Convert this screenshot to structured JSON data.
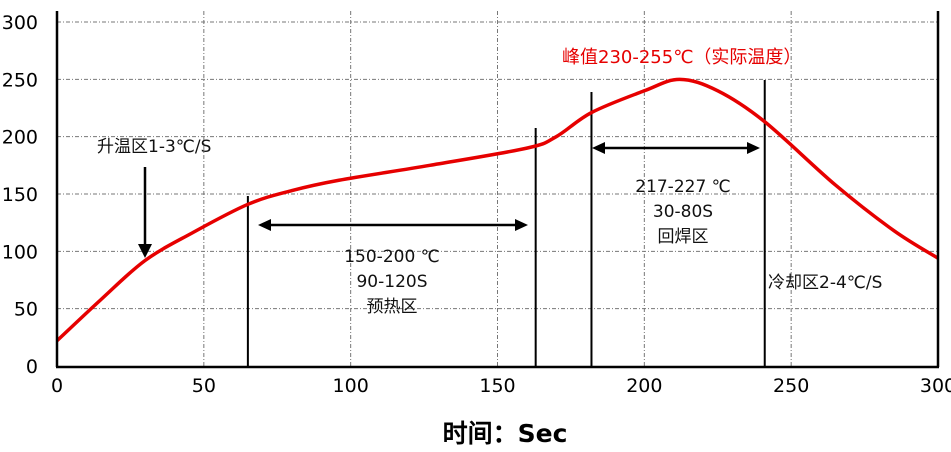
{
  "chart_data": {
    "type": "line",
    "title": "",
    "xlabel": "时间：Sec",
    "ylabel": "",
    "xlim": [
      0,
      300
    ],
    "ylim": [
      0,
      300
    ],
    "xticks": [
      0,
      50,
      100,
      150,
      200,
      250,
      300
    ],
    "yticks": [
      0,
      50,
      100,
      150,
      200,
      250,
      300
    ],
    "grid": true,
    "series": [
      {
        "color": "#e60000",
        "x": [
          0,
          15,
          30,
          46,
          65,
          80,
          96,
          127,
          160,
          170,
          182,
          200,
          212,
          225,
          241,
          265,
          285,
          300
        ],
        "y": [
          22,
          58,
          92,
          116,
          141,
          153,
          162,
          175,
          190,
          200,
          221,
          240,
          250,
          240,
          213,
          158,
          118,
          94
        ]
      }
    ],
    "zone_lines_x": [
      65,
      163,
      182,
      241
    ],
    "annotations": {
      "ramp": "升温区1-3℃/S",
      "preheat": [
        "150-200 ℃",
        "90-120S",
        "预热区"
      ],
      "reflow": [
        "217-227 ℃",
        "30-80S",
        "回焊区"
      ],
      "peak": "峰值230-255℃（实际温度）",
      "cooling": "冷却区2-4℃/S"
    },
    "peak_color": "#e60000"
  }
}
